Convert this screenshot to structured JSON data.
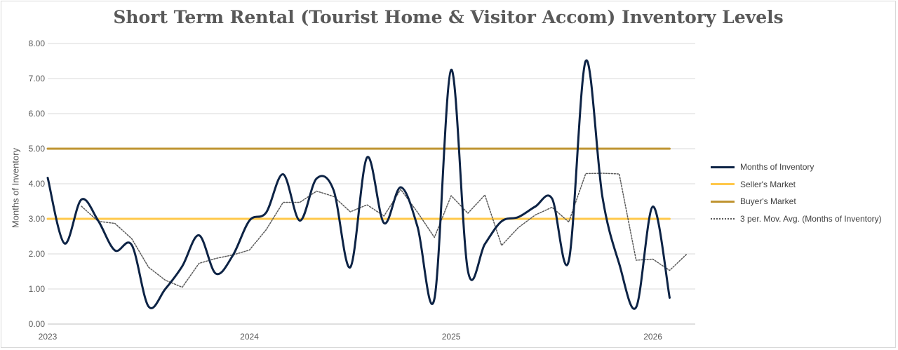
{
  "chart_data": {
    "type": "line",
    "title": "Short Term Rental (Tourist Home & Visitor Accom) Inventory Levels",
    "ylabel": "Months of Inventory",
    "xlabel": "",
    "ylim": [
      0,
      8
    ],
    "yticks": [
      "0.00",
      "1.00",
      "2.00",
      "3.00",
      "4.00",
      "5.00",
      "6.00",
      "7.00",
      "8.00"
    ],
    "xlim": [
      2023,
      2026.21
    ],
    "xticks": [
      {
        "value": 2023,
        "label": "2023"
      },
      {
        "value": 2024,
        "label": "2024"
      },
      {
        "value": 2025,
        "label": "2025"
      },
      {
        "value": 2026,
        "label": "2026"
      }
    ],
    "grid": true,
    "legend_position": "right",
    "series": [
      {
        "name": "Months of Inventory",
        "color": "#0d2345",
        "style": "solid-smooth",
        "x": [
          2023.0,
          2023.083,
          2023.167,
          2023.25,
          2023.333,
          2023.417,
          2023.5,
          2023.583,
          2023.667,
          2023.75,
          2023.833,
          2023.917,
          2024.0,
          2024.083,
          2024.167,
          2024.25,
          2024.333,
          2024.417,
          2024.5,
          2024.583,
          2024.667,
          2024.75,
          2024.833,
          2024.917,
          2025.0,
          2025.083,
          2025.167,
          2025.25,
          2025.333,
          2025.417,
          2025.5,
          2025.583,
          2025.667,
          2025.75,
          2025.833,
          2025.917,
          2026.0,
          2026.083
        ],
        "values": [
          4.17,
          2.3,
          3.55,
          2.95,
          2.1,
          2.25,
          0.5,
          1.0,
          1.65,
          2.53,
          1.44,
          1.95,
          2.95,
          3.18,
          4.27,
          2.95,
          4.15,
          3.82,
          1.62,
          4.75,
          2.88,
          3.9,
          2.78,
          0.72,
          7.25,
          1.52,
          2.28,
          2.93,
          3.05,
          3.35,
          3.58,
          1.8,
          7.5,
          3.62,
          1.72,
          0.48,
          3.35,
          0.75
        ]
      },
      {
        "name": "Seller's Market",
        "color": "#ffc84a",
        "style": "solid",
        "x": [
          2023.0,
          2026.083
        ],
        "values": [
          3.0,
          3.0
        ]
      },
      {
        "name": "Buyer's Market",
        "color": "#bf9431",
        "style": "solid",
        "x": [
          2023.0,
          2026.083
        ],
        "values": [
          5.0,
          5.0
        ]
      },
      {
        "name": "3 per. Mov. Avg. (Months of Inventory)",
        "color": "#595959",
        "style": "dotted",
        "x": [
          2023.167,
          2023.25,
          2023.333,
          2023.417,
          2023.5,
          2023.583,
          2023.667,
          2023.75,
          2023.833,
          2023.917,
          2024.0,
          2024.083,
          2024.167,
          2024.25,
          2024.333,
          2024.417,
          2024.5,
          2024.583,
          2024.667,
          2024.75,
          2024.833,
          2024.917,
          2025.0,
          2025.083,
          2025.167,
          2025.25,
          2025.333,
          2025.417,
          2025.5,
          2025.583,
          2025.667,
          2025.75,
          2025.833,
          2025.917,
          2026.0,
          2026.083,
          2026.167
        ],
        "values": [
          3.36,
          2.93,
          2.87,
          2.43,
          1.62,
          1.25,
          1.05,
          1.73,
          1.87,
          1.97,
          2.11,
          2.69,
          3.47,
          3.47,
          3.79,
          3.64,
          3.2,
          3.4,
          3.08,
          3.84,
          3.19,
          2.47,
          3.66,
          3.16,
          3.68,
          2.24,
          2.75,
          3.11,
          3.33,
          2.91,
          4.29,
          4.3,
          4.28,
          1.82,
          1.85,
          1.53,
          1.99
        ]
      }
    ]
  }
}
